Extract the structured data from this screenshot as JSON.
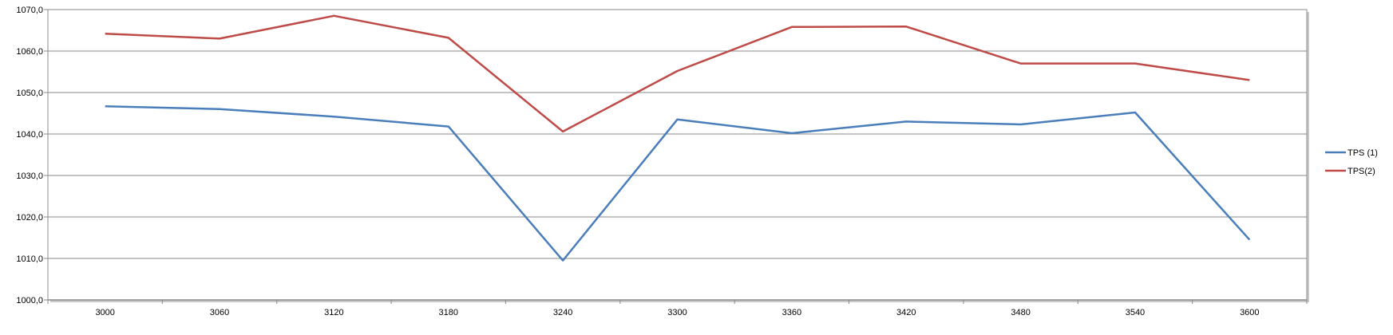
{
  "chart_data": {
    "type": "line",
    "title": "",
    "xlabel": "",
    "ylabel": "",
    "categories": [
      "3000",
      "3060",
      "3120",
      "3180",
      "3240",
      "3300",
      "3360",
      "3420",
      "3480",
      "3540",
      "3600"
    ],
    "y_tick_labels": [
      "1000,0",
      "1010,0",
      "1020,0",
      "1030,0",
      "1040,0",
      "1050,0",
      "1060,0",
      "1070,0"
    ],
    "ylim": [
      1000,
      1070
    ],
    "grid": true,
    "legend_position": "right",
    "series": [
      {
        "name": "TPS (1)",
        "color": "#4a7ebb",
        "values": [
          1046.7,
          1046.0,
          1044.2,
          1041.8,
          1009.5,
          1043.5,
          1040.2,
          1043.0,
          1042.3,
          1045.2,
          1014.5
        ]
      },
      {
        "name": "TPS(2)",
        "color": "#be4b48",
        "values": [
          1064.2,
          1063.0,
          1068.5,
          1063.2,
          1040.6,
          1055.2,
          1065.8,
          1065.9,
          1057.0,
          1057.0,
          1053.0
        ]
      }
    ]
  }
}
